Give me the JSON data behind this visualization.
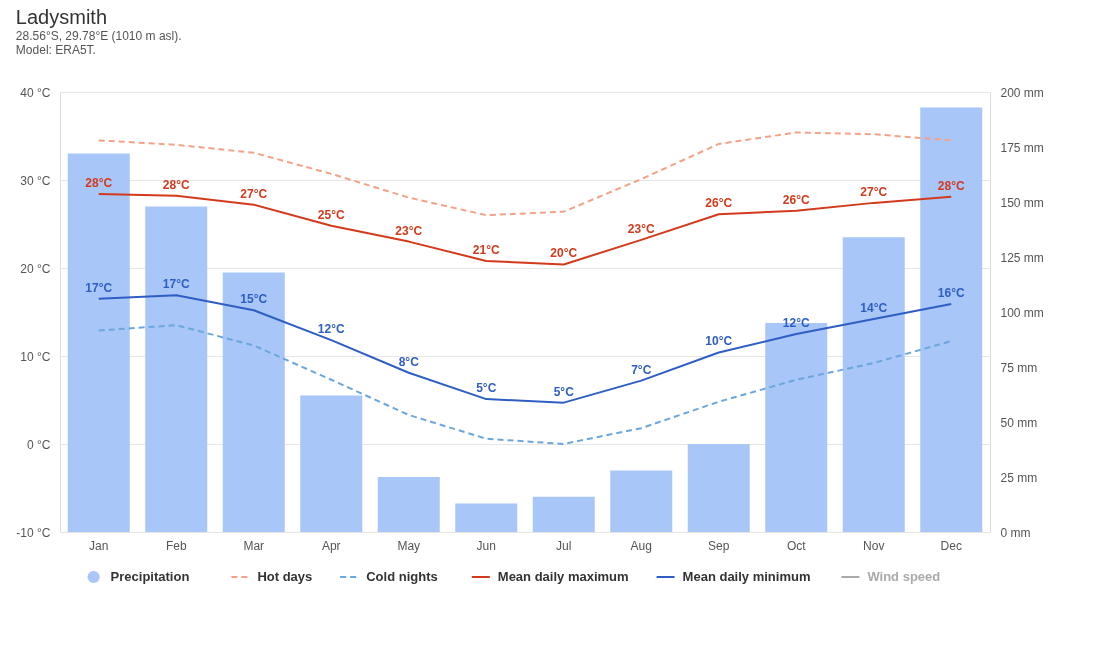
{
  "chart_data": {
    "type": "line",
    "title": "Ladysmith",
    "subtitle": "28.56°S, 29.78°E (1010 m asl).",
    "annotations": [
      "Model: ERA5T."
    ],
    "categories": [
      "Jan",
      "Feb",
      "Mar",
      "Apr",
      "May",
      "Jun",
      "Jul",
      "Aug",
      "Sep",
      "Oct",
      "Nov",
      "Dec"
    ],
    "series": [
      {
        "name": "Precipitation",
        "type": "bar",
        "axis": "y2",
        "color": "#a8c6f7",
        "values": [
          172,
          148,
          118,
          62,
          25,
          13,
          16,
          28,
          40,
          95,
          134,
          193
        ]
      },
      {
        "name": "Hot days",
        "color": "#f3a287",
        "line_style": "dashed",
        "values": [
          34.5,
          34,
          33.1,
          30.7,
          28,
          26,
          26.4,
          30.1,
          34.1,
          35.4,
          35.2,
          34.5
        ]
      },
      {
        "name": "Cold nights",
        "color": "#6ba6dc",
        "line_style": "dashed",
        "values": [
          12.9,
          13.5,
          11.2,
          7.3,
          3.3,
          0.6,
          0,
          1.8,
          4.8,
          7.3,
          9.2,
          11.7
        ]
      },
      {
        "name": "Mean daily maximum",
        "color": "#d33a1c",
        "line_style": "solid",
        "values": [
          28.4,
          28.2,
          27.2,
          24.8,
          23,
          20.8,
          20.4,
          23.2,
          26.1,
          26.5,
          27.4,
          28.1
        ],
        "value_labels": [
          "28°C",
          "28°C",
          "27°C",
          "25°C",
          "23°C",
          "21°C",
          "20°C",
          "23°C",
          "26°C",
          "26°C",
          "27°C",
          "28°C"
        ]
      },
      {
        "name": "Mean daily minimum",
        "color": "#2e5ec4",
        "line_style": "solid",
        "values": [
          16.5,
          16.9,
          15.2,
          11.8,
          8.1,
          5.1,
          4.7,
          7.2,
          10.4,
          12.5,
          14.2,
          15.9
        ],
        "value_labels": [
          "17°C",
          "17°C",
          "15°C",
          "12°C",
          "8°C",
          "5°C",
          "5°C",
          "7°C",
          "10°C",
          "12°C",
          "14°C",
          "16°C"
        ]
      },
      {
        "name": "Wind speed",
        "color": "#aaaaaa",
        "line_style": "solid",
        "values": [
          null,
          null,
          null,
          null,
          null,
          null,
          null,
          null,
          null,
          null,
          null,
          null
        ]
      }
    ],
    "ylim": [
      -10,
      40
    ],
    "yticks": [
      {
        "value": -10,
        "label": "-10 °C"
      },
      {
        "value": 0,
        "label": "0 °C"
      },
      {
        "value": 10,
        "label": "10 °C"
      },
      {
        "value": 20,
        "label": "20 °C"
      },
      {
        "value": 30,
        "label": "30 °C"
      },
      {
        "value": 40,
        "label": "40 °C"
      }
    ],
    "y2lim": [
      0,
      200
    ],
    "y2ticks": [
      {
        "value": 0,
        "label": "0 mm"
      },
      {
        "value": 25,
        "label": "25 mm"
      },
      {
        "value": 50,
        "label": "50 mm"
      },
      {
        "value": 75,
        "label": "75 mm"
      },
      {
        "value": 100,
        "label": "100 mm"
      },
      {
        "value": 125,
        "label": "125 mm"
      },
      {
        "value": 150,
        "label": "150 mm"
      },
      {
        "value": 175,
        "label": "175 mm"
      },
      {
        "value": 200,
        "label": "200 mm"
      }
    ],
    "grid": "y",
    "legend": "bottom",
    "marker": "none"
  }
}
